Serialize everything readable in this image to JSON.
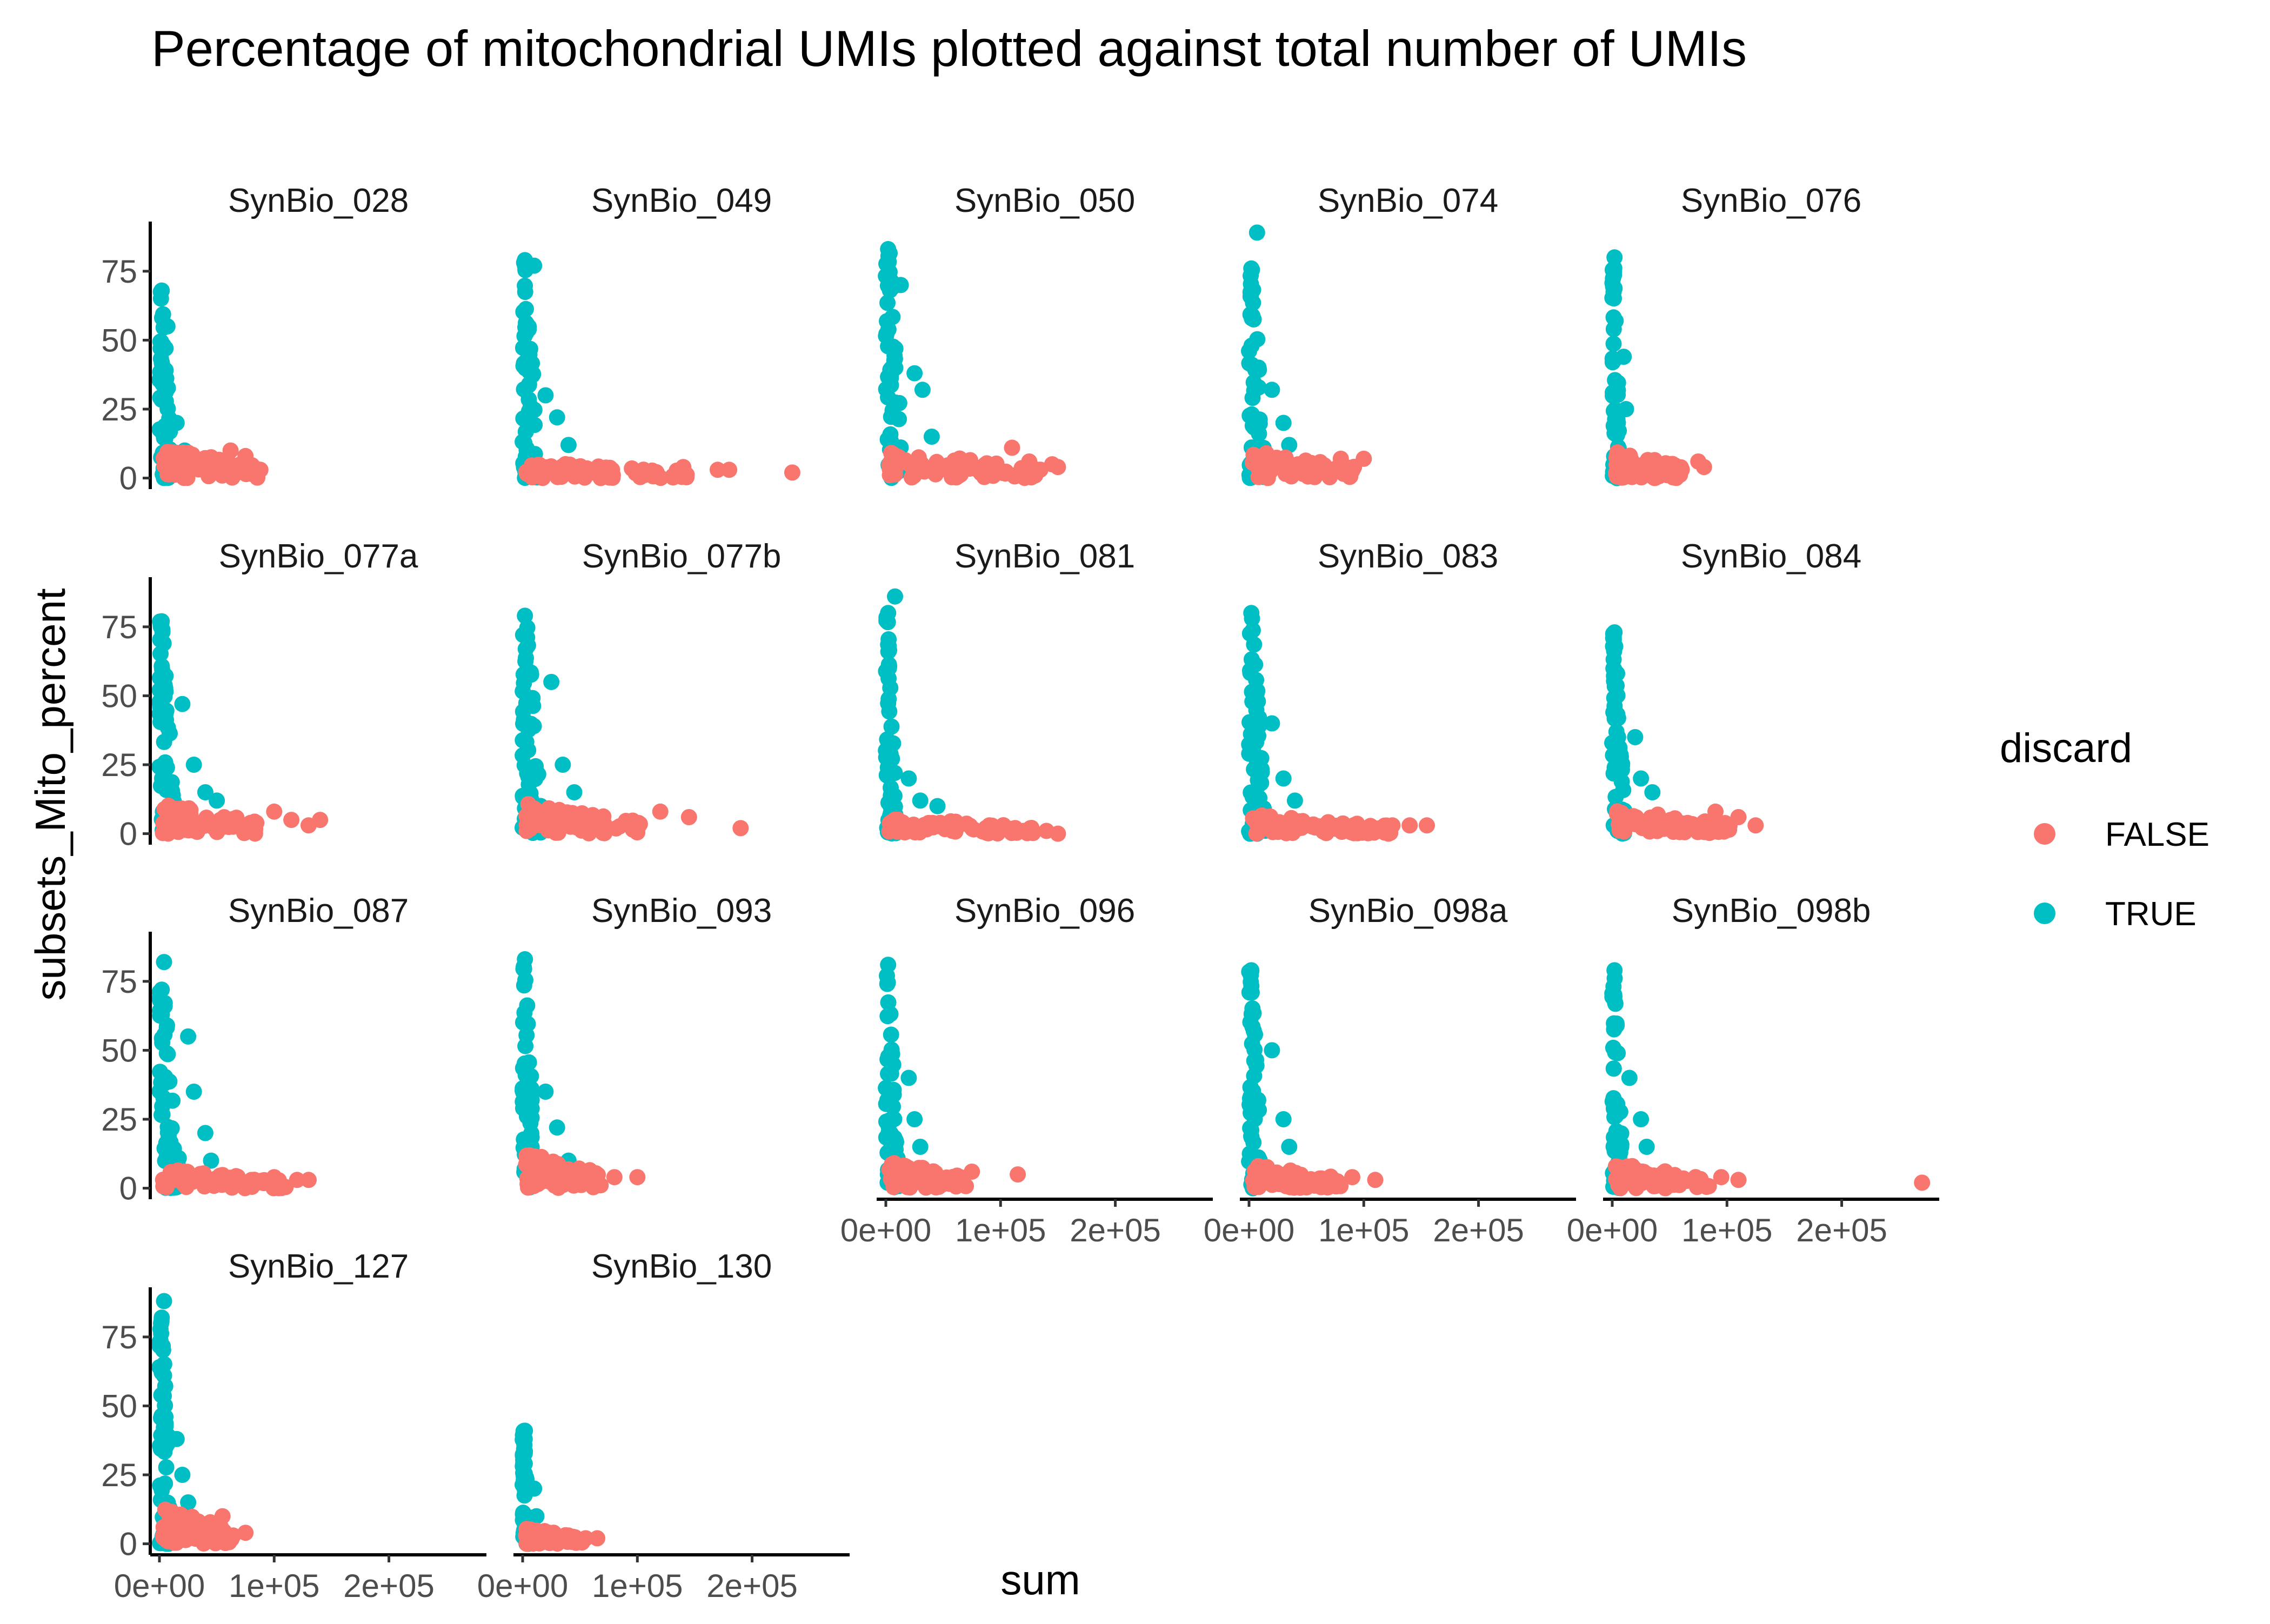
{
  "chart_data": {
    "type": "scatter",
    "title": "Percentage of mitochondrial UMIs plotted against total number of UMIs",
    "xlabel": "sum",
    "ylabel": "subsets_Mito_percent",
    "xlim": [
      -8000,
      285000
    ],
    "ylim": [
      -4,
      93
    ],
    "x_ticks": [
      0,
      100000,
      200000
    ],
    "x_tick_labels": [
      "0e+00",
      "1e+05",
      "2e+05"
    ],
    "y_ticks": [
      0,
      25,
      50,
      75
    ],
    "y_tick_labels": [
      "0",
      "25",
      "50",
      "75"
    ],
    "grid": false,
    "legend": {
      "title": "discard",
      "position": "right",
      "entries": [
        {
          "label": "FALSE",
          "color": "#F8766D"
        },
        {
          "label": "TRUE",
          "color": "#00BFC4"
        }
      ]
    },
    "facets": [
      {
        "name": "SynBio_028",
        "false_x": [
          3000,
          88000
        ],
        "false_y": [
          0,
          11
        ],
        "true_x": [
          0,
          12000
        ],
        "true_y": [
          0,
          68
        ],
        "true_tail": [
          [
            15000,
            20
          ],
          [
            22000,
            10
          ],
          [
            7000,
            55
          ]
        ],
        "false_out": [
          [
            62000,
            10
          ],
          [
            75000,
            8
          ],
          [
            88000,
            3
          ]
        ]
      },
      {
        "name": "SynBio_049",
        "false_x": [
          3000,
          150000
        ],
        "false_y": [
          0,
          6
        ],
        "true_x": [
          0,
          15000
        ],
        "true_y": [
          0,
          79
        ],
        "true_tail": [
          [
            20000,
            30
          ],
          [
            30000,
            22
          ],
          [
            40000,
            12
          ],
          [
            10000,
            77
          ]
        ],
        "false_out": [
          [
            140000,
            4
          ],
          [
            170000,
            3
          ],
          [
            180000,
            3
          ],
          [
            235000,
            2
          ]
        ]
      },
      {
        "name": "SynBio_050",
        "false_x": [
          3000,
          140000
        ],
        "false_y": [
          0,
          10
        ],
        "true_x": [
          0,
          16000
        ],
        "true_y": [
          0,
          83
        ],
        "true_tail": [
          [
            25000,
            38
          ],
          [
            32000,
            32
          ],
          [
            40000,
            15
          ],
          [
            13000,
            70
          ]
        ],
        "false_out": [
          [
            110000,
            11
          ],
          [
            125000,
            6
          ],
          [
            145000,
            5
          ],
          [
            150000,
            4
          ]
        ]
      },
      {
        "name": "SynBio_074",
        "false_x": [
          3000,
          95000
        ],
        "false_y": [
          0,
          10
        ],
        "true_x": [
          0,
          16000
        ],
        "true_y": [
          0,
          76
        ],
        "true_tail": [
          [
            7000,
            89
          ],
          [
            20000,
            32
          ],
          [
            30000,
            20
          ],
          [
            35000,
            12
          ]
        ],
        "false_out": [
          [
            80000,
            7
          ],
          [
            100000,
            7
          ]
        ]
      },
      {
        "name": "SynBio_076",
        "false_x": [
          3000,
          65000
        ],
        "false_y": [
          0,
          10
        ],
        "true_x": [
          0,
          8000
        ],
        "true_y": [
          0,
          80
        ],
        "true_tail": [
          [
            10000,
            44
          ],
          [
            12000,
            25
          ]
        ],
        "false_out": [
          [
            45000,
            3
          ],
          [
            75000,
            6
          ],
          [
            80000,
            4
          ]
        ]
      },
      {
        "name": "SynBio_077a",
        "false_x": [
          3000,
          85000
        ],
        "false_y": [
          0,
          12
        ],
        "true_x": [
          0,
          15000
        ],
        "true_y": [
          0,
          77
        ],
        "true_tail": [
          [
            20000,
            47
          ],
          [
            30000,
            25
          ],
          [
            40000,
            15
          ],
          [
            50000,
            12
          ]
        ],
        "false_out": [
          [
            100000,
            8
          ],
          [
            115000,
            5
          ],
          [
            130000,
            3
          ],
          [
            140000,
            5
          ]
        ]
      },
      {
        "name": "SynBio_077b",
        "false_x": [
          3000,
          105000
        ],
        "false_y": [
          0,
          11
        ],
        "true_x": [
          0,
          18000
        ],
        "true_y": [
          0,
          79
        ],
        "true_tail": [
          [
            25000,
            55
          ],
          [
            35000,
            25
          ],
          [
            45000,
            15
          ],
          [
            55000,
            5
          ],
          [
            30000,
            3
          ]
        ],
        "false_out": [
          [
            120000,
            8
          ],
          [
            145000,
            6
          ],
          [
            190000,
            2
          ]
        ]
      },
      {
        "name": "SynBio_081",
        "false_x": [
          3000,
          130000
        ],
        "false_y": [
          0,
          6
        ],
        "true_x": [
          0,
          10000
        ],
        "true_y": [
          0,
          80
        ],
        "true_tail": [
          [
            8000,
            86
          ],
          [
            20000,
            20
          ],
          [
            30000,
            12
          ],
          [
            45000,
            10
          ]
        ],
        "false_out": [
          [
            120000,
            1
          ],
          [
            140000,
            1
          ],
          [
            150000,
            0
          ]
        ]
      },
      {
        "name": "SynBio_083",
        "false_x": [
          3000,
          125000
        ],
        "false_y": [
          0,
          7
        ],
        "true_x": [
          0,
          15000
        ],
        "true_y": [
          0,
          80
        ],
        "true_tail": [
          [
            20000,
            40
          ],
          [
            30000,
            20
          ],
          [
            40000,
            12
          ]
        ],
        "false_out": [
          [
            125000,
            3
          ],
          [
            140000,
            3
          ],
          [
            155000,
            3
          ]
        ]
      },
      {
        "name": "SynBio_084",
        "false_x": [
          3000,
          105000
        ],
        "false_y": [
          0,
          9
        ],
        "true_x": [
          0,
          12000
        ],
        "true_y": [
          0,
          73
        ],
        "true_tail": [
          [
            20000,
            35
          ],
          [
            25000,
            20
          ],
          [
            35000,
            15
          ]
        ],
        "false_out": [
          [
            90000,
            8
          ],
          [
            110000,
            6
          ],
          [
            125000,
            3
          ]
        ]
      },
      {
        "name": "SynBio_087",
        "false_x": [
          3000,
          110000
        ],
        "false_y": [
          0,
          7
        ],
        "true_x": [
          0,
          20000
        ],
        "true_y": [
          0,
          72
        ],
        "true_tail": [
          [
            4000,
            82
          ],
          [
            25000,
            55
          ],
          [
            30000,
            35
          ],
          [
            40000,
            20
          ],
          [
            45000,
            10
          ]
        ],
        "false_out": [
          [
            100000,
            4
          ],
          [
            120000,
            3
          ],
          [
            130000,
            3
          ]
        ]
      },
      {
        "name": "SynBio_093",
        "false_x": [
          3000,
          70000
        ],
        "false_y": [
          0,
          13
        ],
        "true_x": [
          0,
          12000
        ],
        "true_y": [
          0,
          83
        ],
        "true_tail": [
          [
            20000,
            35
          ],
          [
            30000,
            22
          ],
          [
            40000,
            10
          ]
        ],
        "false_out": [
          [
            80000,
            4
          ],
          [
            100000,
            4
          ]
        ]
      },
      {
        "name": "SynBio_096",
        "false_x": [
          3000,
          70000
        ],
        "false_y": [
          0,
          10
        ],
        "true_x": [
          0,
          12000
        ],
        "true_y": [
          0,
          81
        ],
        "true_tail": [
          [
            20000,
            40
          ],
          [
            25000,
            25
          ],
          [
            30000,
            15
          ]
        ],
        "false_out": [
          [
            75000,
            6
          ],
          [
            115000,
            5
          ]
        ]
      },
      {
        "name": "SynBio_098a",
        "false_x": [
          3000,
          80000
        ],
        "false_y": [
          0,
          9
        ],
        "true_x": [
          0,
          12000
        ],
        "true_y": [
          0,
          79
        ],
        "true_tail": [
          [
            20000,
            50
          ],
          [
            30000,
            25
          ],
          [
            35000,
            15
          ]
        ],
        "false_out": [
          [
            90000,
            4
          ],
          [
            110000,
            3
          ]
        ]
      },
      {
        "name": "SynBio_098b",
        "false_x": [
          3000,
          85000
        ],
        "false_y": [
          0,
          9
        ],
        "true_x": [
          0,
          10000
        ],
        "true_y": [
          0,
          79
        ],
        "true_tail": [
          [
            15000,
            40
          ],
          [
            25000,
            25
          ],
          [
            30000,
            15
          ]
        ],
        "false_out": [
          [
            95000,
            4
          ],
          [
            110000,
            3
          ],
          [
            270000,
            2
          ]
        ]
      },
      {
        "name": "SynBio_127",
        "false_x": [
          3000,
          65000
        ],
        "false_y": [
          0,
          13
        ],
        "true_x": [
          0,
          12000
        ],
        "true_y": [
          0,
          82
        ],
        "true_tail": [
          [
            4000,
            88
          ],
          [
            15000,
            38
          ],
          [
            20000,
            25
          ],
          [
            25000,
            15
          ]
        ],
        "false_out": [
          [
            55000,
            10
          ],
          [
            75000,
            4
          ]
        ]
      },
      {
        "name": "SynBio_130",
        "false_x": [
          3000,
          55000
        ],
        "false_y": [
          0,
          6
        ],
        "true_x": [
          0,
          7000
        ],
        "true_y": [
          0,
          41
        ],
        "true_tail": [
          [
            10000,
            20
          ],
          [
            12000,
            10
          ]
        ],
        "false_out": [
          [
            40000,
            3
          ],
          [
            55000,
            2
          ],
          [
            65000,
            2
          ]
        ]
      }
    ]
  }
}
